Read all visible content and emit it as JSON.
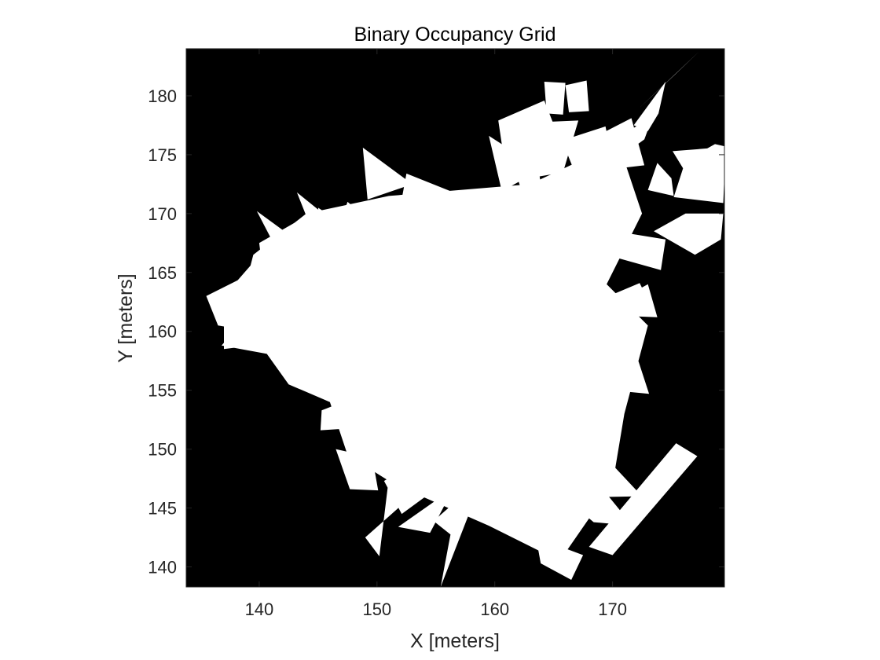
{
  "chart_data": {
    "type": "heatmap",
    "title": "Binary Occupancy Grid",
    "xlabel": "X [meters]",
    "ylabel": "Y [meters]",
    "xlim": [
      133.8,
      179.5
    ],
    "ylim": [
      138.3,
      184.0
    ],
    "x_ticks": [
      140,
      150,
      160,
      170
    ],
    "y_ticks": [
      140,
      145,
      150,
      155,
      160,
      165,
      170,
      175,
      180
    ],
    "grid": false,
    "legend": "none",
    "colormap": {
      "occupied": "#000000",
      "free": "#ffffff"
    },
    "free_space_regions": [
      {
        "points": [
          [
            144,
            170
          ],
          [
            151,
            171.5
          ],
          [
            163,
            172.5
          ],
          [
            170.5,
            176
          ],
          [
            172.5,
            170
          ],
          [
            169.5,
            164
          ],
          [
            173,
            160.5
          ],
          [
            171,
            153
          ],
          [
            170,
            147
          ],
          [
            165.5,
            140.5
          ],
          [
            159.5,
            143.5
          ],
          [
            151.5,
            147
          ],
          [
            147.5,
            149.5
          ],
          [
            146,
            154
          ],
          [
            142.5,
            155.5
          ],
          [
            140,
            159
          ],
          [
            138.2,
            161.5
          ],
          [
            139.5,
            166.5
          ]
        ]
      },
      {
        "points": [
          [
            144.5,
            163
          ],
          [
            147.5,
            171
          ],
          [
            151,
            168
          ],
          [
            149.5,
            162
          ]
        ]
      },
      {
        "points": [
          [
            137,
            163
          ],
          [
            140.5,
            167
          ],
          [
            143.5,
            164
          ],
          [
            141,
            159
          ],
          [
            137,
            158.5
          ]
        ]
      },
      {
        "points": [
          [
            135.5,
            163
          ],
          [
            138.5,
            164.5
          ],
          [
            139.5,
            160
          ],
          [
            136.5,
            160.5
          ]
        ]
      },
      {
        "points": [
          [
            140,
            167.5
          ],
          [
            143.5,
            169.5
          ],
          [
            143,
            164.5
          ],
          [
            140.5,
            163.5
          ]
        ]
      },
      {
        "points": [
          [
            136.8,
            158.8
          ],
          [
            145.5,
            157.2
          ],
          [
            146.8,
            161.5
          ],
          [
            139.5,
            162
          ]
        ]
      },
      {
        "points": [
          [
            139.8,
            170.2
          ],
          [
            143.5,
            167.5
          ],
          [
            142.5,
            165
          ]
        ]
      },
      {
        "points": [
          [
            143.2,
            171.8
          ],
          [
            147.4,
            168.4
          ],
          [
            145.5,
            166
          ]
        ]
      },
      {
        "points": [
          [
            145,
            170.5
          ],
          [
            146.5,
            169.5
          ],
          [
            145.2,
            168
          ]
        ]
      },
      {
        "points": [
          [
            148.8,
            175.6
          ],
          [
            153,
            172.5
          ],
          [
            149.2,
            171.2
          ]
        ]
      },
      {
        "points": [
          [
            152.5,
            173.4
          ],
          [
            156.5,
            171.8
          ],
          [
            151.8,
            169.6
          ]
        ]
      },
      {
        "points": [
          [
            155.8,
            170.5
          ],
          [
            158,
            170
          ],
          [
            156.5,
            168.2
          ]
        ]
      },
      {
        "points": [
          [
            151,
            156
          ],
          [
            152.5,
            154.8
          ],
          [
            146.5,
            152.5
          ],
          [
            146.2,
            154.6
          ]
        ]
      },
      {
        "points": [
          [
            145.3,
            153.3
          ],
          [
            148.4,
            154.5
          ],
          [
            148.3,
            151.8
          ],
          [
            145.2,
            151.6
          ]
        ]
      },
      {
        "points": [
          [
            146.5,
            150
          ],
          [
            149.6,
            149.3
          ],
          [
            150.1,
            146.5
          ],
          [
            147.7,
            146.6
          ]
        ]
      },
      {
        "points": [
          [
            152.1,
            144.5
          ],
          [
            156.2,
            147.5
          ],
          [
            154.2,
            149.5
          ],
          [
            150.6,
            147.3
          ]
        ]
      },
      {
        "points": [
          [
            152.6,
            147.8
          ],
          [
            159.8,
            148.6
          ],
          [
            160.2,
            151.2
          ],
          [
            153.5,
            151.8
          ]
        ]
      },
      {
        "points": [
          [
            149,
            142.5
          ],
          [
            153.5,
            146.5
          ],
          [
            151,
            147.5
          ],
          [
            150.2,
            140.9
          ]
        ]
      },
      {
        "points": [
          [
            151.8,
            143.4
          ],
          [
            156.5,
            146.7
          ],
          [
            154.5,
            142.9
          ]
        ]
      },
      {
        "points": [
          [
            154.8,
            143.9
          ],
          [
            157.2,
            146
          ],
          [
            156.3,
            142.7
          ]
        ]
      },
      {
        "points": [
          [
            155.4,
            138.3
          ],
          [
            158.2,
            145.5
          ],
          [
            156.8,
            145.7
          ]
        ]
      },
      {
        "points": [
          [
            162.3,
            143.5
          ],
          [
            165.5,
            140.3
          ],
          [
            166.5,
            143.5
          ],
          [
            163.5,
            145.5
          ]
        ]
      },
      {
        "points": [
          [
            163.5,
            142.5
          ],
          [
            167.5,
            141
          ],
          [
            166.5,
            138.9
          ],
          [
            163.9,
            140.3
          ]
        ]
      },
      {
        "points": [
          [
            168.6,
            147.3
          ],
          [
            171.7,
            143.5
          ],
          [
            168.4,
            143.8
          ],
          [
            167.2,
            144.8
          ]
        ]
      },
      {
        "points": [
          [
            169.5,
            149.2
          ],
          [
            172.5,
            146
          ],
          [
            167.3,
            145.9
          ]
        ]
      },
      {
        "points": [
          [
            168,
            141.7
          ],
          [
            170,
            141
          ],
          [
            177.2,
            149.4
          ],
          [
            175.4,
            150.5
          ]
        ]
      },
      {
        "points": [
          [
            170,
            155
          ],
          [
            173.1,
            154.7
          ],
          [
            171.7,
            159
          ],
          [
            170.3,
            157.5
          ]
        ]
      },
      {
        "points": [
          [
            168.5,
            162.5
          ],
          [
            172.3,
            164.1
          ],
          [
            173.6,
            161.5
          ],
          [
            168.6,
            160.8
          ]
        ]
      },
      {
        "points": [
          [
            171,
            162.9
          ],
          [
            173,
            164
          ],
          [
            173.8,
            161.2
          ],
          [
            171.3,
            161.3
          ]
        ]
      },
      {
        "points": [
          [
            170.2,
            168.5
          ],
          [
            174.5,
            167.8
          ],
          [
            174.1,
            165.2
          ],
          [
            168.4,
            166.8
          ]
        ]
      },
      {
        "points": [
          [
            173.5,
            168.5
          ],
          [
            177,
            166.5
          ],
          [
            179.2,
            167.8
          ],
          [
            179.4,
            170
          ],
          [
            176.2,
            170
          ]
        ]
      },
      {
        "points": [
          [
            173,
            172
          ],
          [
            175.2,
            171.5
          ],
          [
            175,
            173
          ],
          [
            173.8,
            174.3
          ]
        ]
      },
      {
        "points": [
          [
            175.2,
            171.4
          ],
          [
            179.4,
            170.9
          ],
          [
            179.6,
            175.7
          ],
          [
            178.7,
            175.9
          ],
          [
            176.2,
            174.5
          ]
        ]
      },
      {
        "points": [
          [
            175.1,
            175.3
          ],
          [
            178.9,
            175.6
          ],
          [
            178.8,
            173.2
          ],
          [
            176.2,
            173.5
          ]
        ]
      },
      {
        "points": [
          [
            170.8,
            176.7
          ],
          [
            173.4,
            178.2
          ],
          [
            172.7,
            176.3
          ],
          [
            171.6,
            175.5
          ]
        ]
      },
      {
        "points": [
          [
            171.8,
            177.5
          ],
          [
            174.5,
            181.2
          ],
          [
            173.9,
            178.5
          ],
          [
            173,
            177
          ]
        ]
      },
      {
        "points": [
          [
            172.2,
            178.9
          ],
          [
            177.5,
            183.9
          ],
          [
            175.3,
            181.8
          ]
        ]
      },
      {
        "points": [
          [
            166,
            180.9
          ],
          [
            167.8,
            181.3
          ],
          [
            168,
            178.7
          ],
          [
            166.3,
            178.6
          ]
        ]
      },
      {
        "points": [
          [
            164.2,
            181.2
          ],
          [
            166,
            181.1
          ],
          [
            165.8,
            178.4
          ],
          [
            164.4,
            178.5
          ]
        ]
      },
      {
        "points": [
          [
            160.3,
            177.9
          ],
          [
            164.2,
            179.6
          ],
          [
            165.3,
            176.8
          ],
          [
            163.2,
            172.5
          ],
          [
            160.7,
            175.2
          ]
        ]
      },
      {
        "points": [
          [
            160.9,
            176
          ],
          [
            163.6,
            174.4
          ],
          [
            164.1,
            171.4
          ],
          [
            162.3,
            171.9
          ]
        ]
      },
      {
        "points": [
          [
            159.5,
            176.6
          ],
          [
            162.3,
            174.8
          ],
          [
            162.4,
            172.9
          ],
          [
            160.6,
            171.9
          ]
        ]
      },
      {
        "points": [
          [
            162.4,
            177.7
          ],
          [
            167.1,
            177.9
          ],
          [
            165.8,
            173.5
          ],
          [
            162.9,
            173
          ]
        ]
      },
      {
        "points": [
          [
            167.7,
            176.1
          ],
          [
            171.6,
            178.1
          ],
          [
            172.7,
            174.1
          ],
          [
            169.3,
            173.7
          ]
        ]
      },
      {
        "points": [
          [
            165.7,
            176.2
          ],
          [
            169.4,
            177.4
          ],
          [
            170,
            174.5
          ],
          [
            166.6,
            174
          ]
        ]
      },
      {
        "points": [
          [
            154.1,
            164.2
          ],
          [
            158.5,
            163.4
          ],
          [
            158.8,
            160.5
          ],
          [
            155.3,
            159.3
          ],
          [
            152.6,
            161.5
          ]
        ]
      },
      {
        "points": [
          [
            163.6,
            161.4
          ],
          [
            167.7,
            164.6
          ],
          [
            169.7,
            160.4
          ],
          [
            166.7,
            157.2
          ],
          [
            163.7,
            158.1
          ]
        ]
      }
    ]
  }
}
